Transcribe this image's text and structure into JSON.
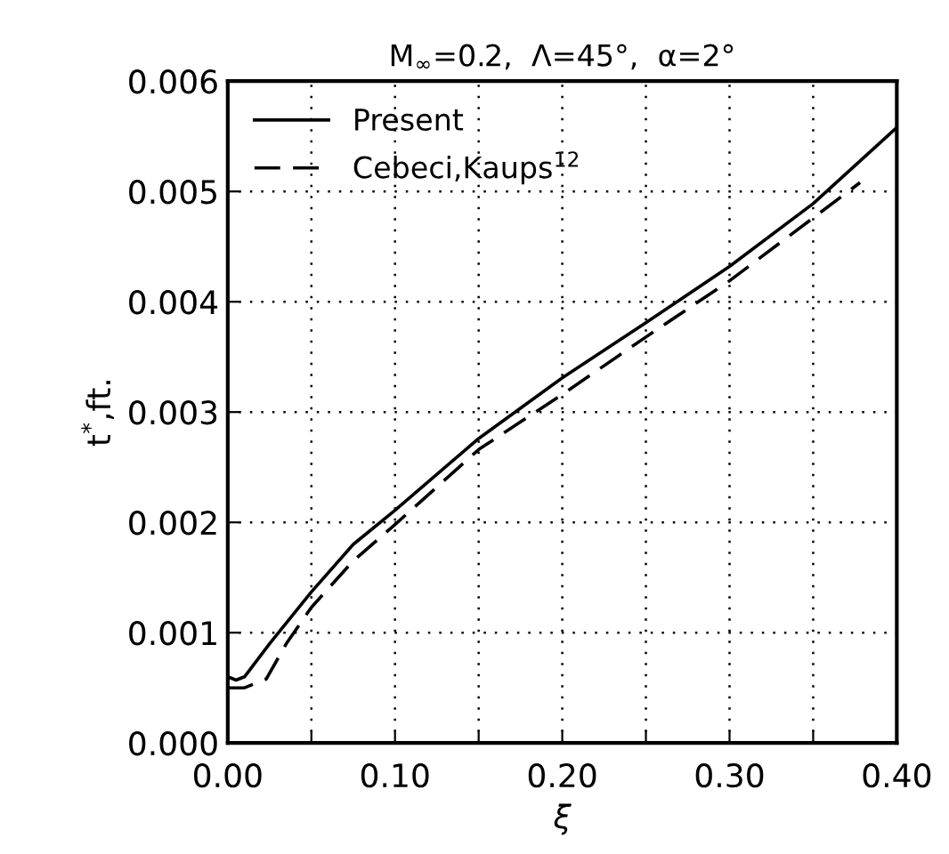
{
  "chart_data": {
    "type": "line",
    "title": "M$_{∞}$=0.2,  Λ=45°,  α=2°",
    "xlabel": "ξ",
    "ylabel": "t$^{*}$,ft.",
    "xlim": [
      0,
      0.4
    ],
    "ylim": [
      0,
      0.006
    ],
    "xticks": [
      {
        "value": 0,
        "label": "0.00"
      },
      {
        "value": 0.05,
        "label": null
      },
      {
        "value": 0.1,
        "label": "0.10"
      },
      {
        "value": 0.15,
        "label": null
      },
      {
        "value": 0.2,
        "label": "0.20"
      },
      {
        "value": 0.25,
        "label": null
      },
      {
        "value": 0.3,
        "label": "0.30"
      },
      {
        "value": 0.35,
        "label": null
      },
      {
        "value": 0.4,
        "label": "0.40"
      }
    ],
    "yticks": [
      {
        "value": 0,
        "label": "0.000"
      },
      {
        "value": 0.001,
        "label": "0.001"
      },
      {
        "value": 0.002,
        "label": "0.002"
      },
      {
        "value": 0.003,
        "label": "0.003"
      },
      {
        "value": 0.004,
        "label": "0.004"
      },
      {
        "value": 0.005,
        "label": "0.005"
      },
      {
        "value": 0.006,
        "label": "0.006"
      }
    ],
    "grid": true,
    "legend": "top left",
    "marker": "none",
    "series": [
      {
        "name": "Present",
        "color": "#000000",
        "line_style": "solid",
        "x": [
          0,
          0.005,
          0.01,
          0.025,
          0.05,
          0.075,
          0.1,
          0.15,
          0.2,
          0.25,
          0.3,
          0.35,
          0.4
        ],
        "values": [
          0.0006,
          0.00057,
          0.0006,
          0.0009,
          0.00137,
          0.0018,
          0.00211,
          0.00276,
          0.00331,
          0.00381,
          0.00432,
          0.00489,
          0.00558
        ]
      },
      {
        "name": "Cebeci,Kaups$^{12}$",
        "color": "#000000",
        "line_style": "dashed",
        "x": [
          0,
          0.01,
          0.023,
          0.035,
          0.05,
          0.075,
          0.1,
          0.15,
          0.2,
          0.25,
          0.3,
          0.35,
          0.378
        ],
        "values": [
          0.0005,
          0.0005,
          0.00058,
          0.0009,
          0.00123,
          0.00165,
          0.00198,
          0.00266,
          0.00316,
          0.00368,
          0.00419,
          0.00476,
          0.00508
        ]
      }
    ]
  }
}
